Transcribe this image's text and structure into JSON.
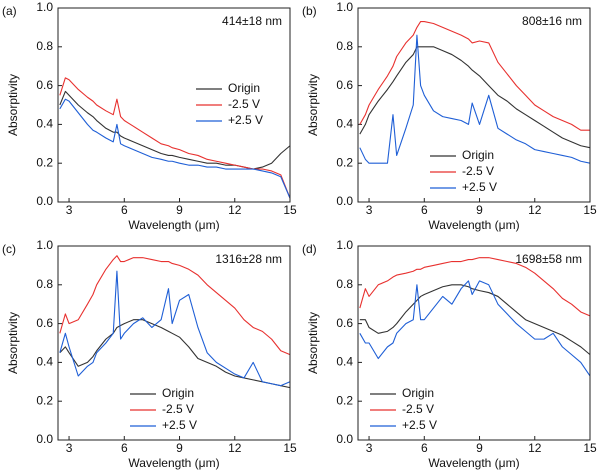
{
  "chart_data": [
    {
      "type": "line",
      "panel_label": "(a)",
      "annotation": "414±18 nm",
      "x_label": "Wavelength (μm)",
      "y_label": "Absorptivity",
      "xlim": [
        2.4,
        15
      ],
      "xticks": [
        3,
        6,
        9,
        12,
        15
      ],
      "ylim": [
        0,
        1.0
      ],
      "yticks": [
        {
          "value": 0,
          "label": "0.0"
        },
        0.2,
        0.4,
        0.6,
        0.8,
        {
          "value": 1.0,
          "label": "1.0"
        }
      ],
      "legend_loc": "center right",
      "x": [
        2.5,
        2.8,
        3.0,
        3.5,
        4.0,
        4.3,
        4.5,
        5.0,
        5.4,
        5.6,
        5.8,
        6.0,
        6.5,
        7.0,
        7.5,
        8.0,
        8.4,
        8.6,
        9.0,
        9.5,
        10.0,
        10.5,
        11.0,
        11.5,
        12.0,
        12.5,
        13.0,
        13.5,
        14.0,
        14.5,
        15.0
      ],
      "series": [
        {
          "name": "Origin",
          "color": "#333333",
          "values": [
            0.5,
            0.57,
            0.55,
            0.5,
            0.46,
            0.44,
            0.42,
            0.38,
            0.36,
            0.36,
            0.34,
            0.33,
            0.31,
            0.29,
            0.27,
            0.25,
            0.24,
            0.24,
            0.23,
            0.22,
            0.21,
            0.2,
            0.2,
            0.19,
            0.19,
            0.18,
            0.17,
            0.18,
            0.2,
            0.25,
            0.29
          ]
        },
        {
          "name": "-2.5 V",
          "color": "#e8312f",
          "values": [
            0.55,
            0.64,
            0.63,
            0.58,
            0.54,
            0.52,
            0.5,
            0.47,
            0.45,
            0.53,
            0.44,
            0.42,
            0.39,
            0.36,
            0.33,
            0.3,
            0.29,
            0.28,
            0.27,
            0.25,
            0.24,
            0.22,
            0.21,
            0.2,
            0.19,
            0.18,
            0.17,
            0.17,
            0.16,
            0.14,
            0.02
          ]
        },
        {
          "name": "+2.5 V",
          "color": "#1f5fd6",
          "values": [
            0.48,
            0.53,
            0.52,
            0.46,
            0.4,
            0.37,
            0.36,
            0.33,
            0.31,
            0.4,
            0.3,
            0.29,
            0.27,
            0.25,
            0.23,
            0.22,
            0.21,
            0.21,
            0.2,
            0.19,
            0.19,
            0.18,
            0.18,
            0.17,
            0.17,
            0.17,
            0.17,
            0.16,
            0.15,
            0.13,
            0.02
          ]
        }
      ]
    },
    {
      "type": "line",
      "panel_label": "(b)",
      "annotation": "808±16 nm",
      "x_label": "Wavelength (μm)",
      "y_label": "Absorptivity",
      "xlim": [
        2.4,
        15
      ],
      "xticks": [
        3,
        6,
        9,
        12,
        15
      ],
      "ylim": [
        0,
        1.0
      ],
      "yticks": [
        {
          "value": 0,
          "label": "0.0"
        },
        0.2,
        0.4,
        0.6,
        0.8,
        {
          "value": 1.0,
          "label": "1.0"
        }
      ],
      "legend_loc": "lower center",
      "x": [
        2.5,
        2.8,
        3.0,
        3.5,
        4.0,
        4.3,
        4.5,
        5.0,
        5.4,
        5.6,
        5.8,
        6.0,
        6.5,
        7.0,
        7.5,
        8.0,
        8.4,
        8.6,
        9.0,
        9.5,
        10.0,
        10.5,
        11.0,
        11.5,
        12.0,
        12.5,
        13.0,
        13.5,
        14.0,
        14.5,
        15.0
      ],
      "series": [
        {
          "name": "Origin",
          "color": "#333333",
          "values": [
            0.35,
            0.4,
            0.45,
            0.52,
            0.58,
            0.62,
            0.65,
            0.72,
            0.76,
            0.8,
            0.8,
            0.8,
            0.8,
            0.78,
            0.76,
            0.73,
            0.7,
            0.68,
            0.65,
            0.6,
            0.55,
            0.52,
            0.48,
            0.45,
            0.42,
            0.39,
            0.36,
            0.33,
            0.31,
            0.29,
            0.28
          ]
        },
        {
          "name": "-2.5 V",
          "color": "#e8312f",
          "values": [
            0.4,
            0.45,
            0.5,
            0.58,
            0.65,
            0.7,
            0.75,
            0.82,
            0.86,
            0.9,
            0.93,
            0.93,
            0.92,
            0.9,
            0.88,
            0.86,
            0.84,
            0.82,
            0.83,
            0.82,
            0.72,
            0.66,
            0.6,
            0.55,
            0.5,
            0.47,
            0.44,
            0.42,
            0.4,
            0.37,
            0.37
          ]
        },
        {
          "name": "+2.5 V",
          "color": "#1f5fd6",
          "values": [
            0.28,
            0.22,
            0.2,
            0.2,
            0.2,
            0.45,
            0.24,
            0.38,
            0.5,
            0.86,
            0.6,
            0.55,
            0.47,
            0.44,
            0.43,
            0.42,
            0.4,
            0.51,
            0.4,
            0.55,
            0.38,
            0.35,
            0.32,
            0.3,
            0.27,
            0.26,
            0.25,
            0.24,
            0.23,
            0.21,
            0.2
          ]
        }
      ]
    },
    {
      "type": "line",
      "panel_label": "(c)",
      "annotation": "1316±28 nm",
      "x_label": "Wavelength (μm)",
      "y_label": "Absorptivity",
      "xlim": [
        2.4,
        15
      ],
      "xticks": [
        3,
        6,
        9,
        12,
        15
      ],
      "ylim": [
        0,
        1.0
      ],
      "yticks": [
        {
          "value": 0,
          "label": "0.0"
        },
        0.2,
        0.4,
        0.6,
        0.8,
        {
          "value": 1.0,
          "label": "1.0"
        }
      ],
      "legend_loc": "lower center",
      "x": [
        2.5,
        2.8,
        3.0,
        3.5,
        4.0,
        4.3,
        4.5,
        5.0,
        5.4,
        5.6,
        5.8,
        6.0,
        6.5,
        7.0,
        7.5,
        8.0,
        8.4,
        8.6,
        9.0,
        9.5,
        10.0,
        10.5,
        11.0,
        11.5,
        12.0,
        12.5,
        13.0,
        13.5,
        14.0,
        14.5,
        15.0
      ],
      "series": [
        {
          "name": "Origin",
          "color": "#333333",
          "values": [
            0.45,
            0.48,
            0.45,
            0.38,
            0.4,
            0.43,
            0.46,
            0.52,
            0.55,
            0.58,
            0.59,
            0.6,
            0.62,
            0.62,
            0.6,
            0.58,
            0.56,
            0.55,
            0.53,
            0.48,
            0.42,
            0.4,
            0.38,
            0.35,
            0.33,
            0.32,
            0.31,
            0.3,
            0.29,
            0.28,
            0.27
          ]
        },
        {
          "name": "-2.5 V",
          "color": "#e8312f",
          "values": [
            0.55,
            0.65,
            0.6,
            0.62,
            0.7,
            0.75,
            0.8,
            0.88,
            0.93,
            0.95,
            0.92,
            0.92,
            0.94,
            0.94,
            0.93,
            0.92,
            0.92,
            0.91,
            0.9,
            0.88,
            0.85,
            0.8,
            0.76,
            0.72,
            0.68,
            0.62,
            0.58,
            0.56,
            0.52,
            0.46,
            0.44
          ]
        },
        {
          "name": "+2.5 V",
          "color": "#1f5fd6",
          "values": [
            0.45,
            0.55,
            0.48,
            0.33,
            0.38,
            0.4,
            0.45,
            0.5,
            0.55,
            0.87,
            0.52,
            0.55,
            0.6,
            0.63,
            0.58,
            0.62,
            0.78,
            0.6,
            0.72,
            0.75,
            0.58,
            0.45,
            0.4,
            0.37,
            0.34,
            0.32,
            0.4,
            0.3,
            0.29,
            0.28,
            0.3
          ]
        }
      ]
    },
    {
      "type": "line",
      "panel_label": "(d)",
      "annotation": "1698±58 nm",
      "x_label": "Wavelength (μm)",
      "y_label": "Absorptivity",
      "xlim": [
        2.4,
        15
      ],
      "xticks": [
        3,
        6,
        9,
        12,
        15
      ],
      "ylim": [
        0,
        1.0
      ],
      "yticks": [
        {
          "value": 0,
          "label": "0.0"
        },
        0.2,
        0.4,
        0.6,
        0.8,
        {
          "value": 1.0,
          "label": "1.0"
        }
      ],
      "legend_loc": "lower left",
      "x": [
        2.5,
        2.8,
        3.0,
        3.5,
        4.0,
        4.3,
        4.5,
        5.0,
        5.4,
        5.6,
        5.8,
        6.0,
        6.5,
        7.0,
        7.5,
        8.0,
        8.4,
        8.6,
        9.0,
        9.5,
        10.0,
        10.5,
        11.0,
        11.5,
        12.0,
        12.5,
        13.0,
        13.5,
        14.0,
        14.5,
        15.0
      ],
      "series": [
        {
          "name": "Origin",
          "color": "#333333",
          "values": [
            0.62,
            0.62,
            0.58,
            0.55,
            0.56,
            0.58,
            0.6,
            0.66,
            0.7,
            0.72,
            0.74,
            0.75,
            0.77,
            0.79,
            0.8,
            0.8,
            0.79,
            0.78,
            0.77,
            0.76,
            0.74,
            0.7,
            0.66,
            0.62,
            0.6,
            0.58,
            0.56,
            0.54,
            0.51,
            0.48,
            0.44
          ]
        },
        {
          "name": "-2.5 V",
          "color": "#e8312f",
          "values": [
            0.68,
            0.78,
            0.74,
            0.8,
            0.82,
            0.84,
            0.85,
            0.86,
            0.87,
            0.88,
            0.88,
            0.89,
            0.9,
            0.91,
            0.92,
            0.92,
            0.93,
            0.93,
            0.94,
            0.94,
            0.93,
            0.92,
            0.91,
            0.89,
            0.86,
            0.82,
            0.78,
            0.73,
            0.7,
            0.66,
            0.64
          ]
        },
        {
          "name": "+2.5 V",
          "color": "#1f5fd6",
          "values": [
            0.55,
            0.5,
            0.5,
            0.42,
            0.48,
            0.5,
            0.55,
            0.6,
            0.62,
            0.8,
            0.62,
            0.62,
            0.68,
            0.74,
            0.7,
            0.78,
            0.82,
            0.75,
            0.82,
            0.8,
            0.7,
            0.65,
            0.6,
            0.56,
            0.52,
            0.52,
            0.55,
            0.48,
            0.44,
            0.4,
            0.33
          ]
        }
      ]
    }
  ]
}
